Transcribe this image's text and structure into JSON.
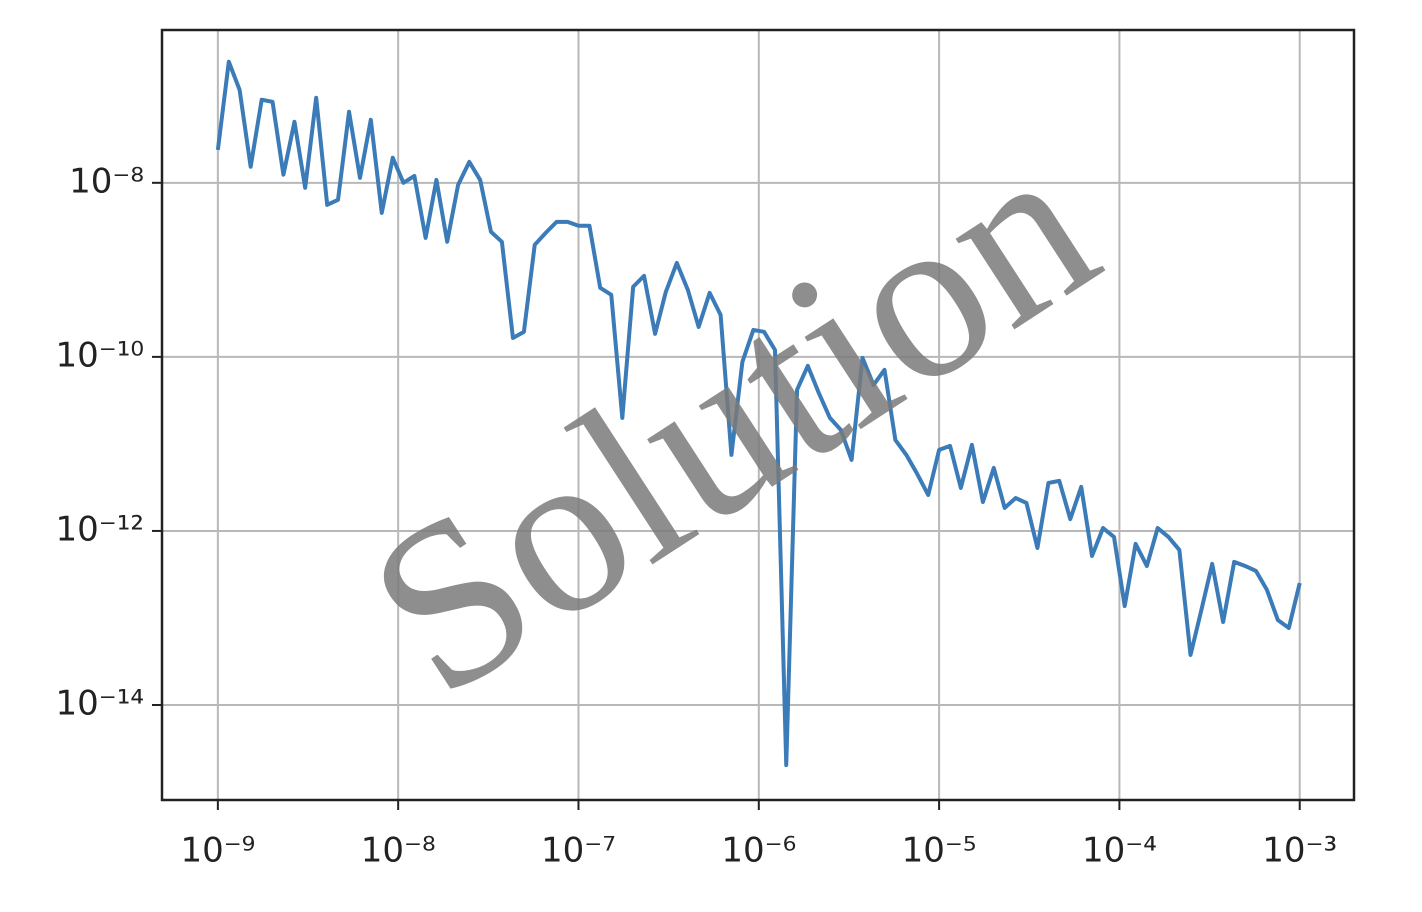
{
  "chart_data": {
    "type": "line",
    "watermark": "Solution",
    "xscale": "log",
    "yscale": "log",
    "grid": true,
    "color": "#3a7bb8",
    "xlim": [
      4.9e-10,
      0.002
    ],
    "ylim": [
      8.1e-16,
      5.7e-07
    ],
    "xticks": [
      {
        "value": 1e-09,
        "label": "10⁻⁹"
      },
      {
        "value": 1e-08,
        "label": "10⁻⁸"
      },
      {
        "value": 1e-07,
        "label": "10⁻⁷"
      },
      {
        "value": 1e-06,
        "label": "10⁻⁶"
      },
      {
        "value": 1e-05,
        "label": "10⁻⁵"
      },
      {
        "value": 0.0001,
        "label": "10⁻⁴"
      },
      {
        "value": 0.001,
        "label": "10⁻³"
      }
    ],
    "yticks": [
      {
        "value": 1e-08,
        "label": "10⁻⁸"
      },
      {
        "value": 1e-10,
        "label": "10⁻¹⁰"
      },
      {
        "value": 1e-12,
        "label": "10⁻¹²"
      },
      {
        "value": 1e-14,
        "label": "10⁻¹⁴"
      }
    ],
    "x": [
      1e-09,
      1.15e-09,
      1.32e-09,
      1.52e-09,
      1.75e-09,
      2.01e-09,
      2.31e-09,
      2.66e-09,
      3.05e-09,
      3.51e-09,
      4.04e-09,
      4.64e-09,
      5.34e-09,
      6.14e-09,
      7.05e-09,
      8.11e-09,
      9.33e-09,
      1.07e-08,
      1.23e-08,
      1.42e-08,
      1.63e-08,
      1.87e-08,
      2.15e-08,
      2.48e-08,
      2.85e-08,
      3.27e-08,
      3.76e-08,
      4.33e-08,
      4.98e-08,
      5.72e-08,
      6.58e-08,
      7.56e-08,
      8.7e-08,
      1e-07,
      1.15e-07,
      1.32e-07,
      1.52e-07,
      1.75e-07,
      2.01e-07,
      2.31e-07,
      2.66e-07,
      3.05e-07,
      3.51e-07,
      4.04e-07,
      4.64e-07,
      5.34e-07,
      6.14e-07,
      7.05e-07,
      8.11e-07,
      9.33e-07,
      1.07e-06,
      1.23e-06,
      1.42e-06,
      1.63e-06,
      1.87e-06,
      2.15e-06,
      2.48e-06,
      2.85e-06,
      3.27e-06,
      3.76e-06,
      4.33e-06,
      4.98e-06,
      5.72e-06,
      6.58e-06,
      7.56e-06,
      8.7e-06,
      1e-05,
      1.15e-05,
      1.32e-05,
      1.52e-05,
      1.75e-05,
      2.01e-05,
      2.31e-05,
      2.66e-05,
      3.05e-05,
      3.51e-05,
      4.04e-05,
      4.64e-05,
      5.34e-05,
      6.14e-05,
      7.05e-05,
      8.11e-05,
      9.33e-05,
      0.000107,
      0.000123,
      0.000142,
      0.000163,
      0.000187,
      0.000215,
      0.000248,
      0.000285,
      0.000327,
      0.000376,
      0.000433,
      0.000498,
      0.000572,
      0.000658,
      0.000756,
      0.00087,
      0.001
    ],
    "values": [
      2.39e-08,
      2.46e-07,
      1.17e-07,
      1.53e-08,
      9e-08,
      8.53e-08,
      1.24e-08,
      5.02e-08,
      8.77e-09,
      9.48e-08,
      5.58e-09,
      6.38e-09,
      6.55e-08,
      1.14e-08,
      5.3e-08,
      4.52e-09,
      1.94e-08,
      1e-08,
      1.2e-08,
      2.33e-09,
      1.08e-08,
      2.1e-09,
      9.48e-09,
      1.74e-08,
      1.08e-08,
      2.74e-09,
      2.1e-09,
      1.65e-10,
      1.94e-10,
      1.94e-09,
      2.66e-09,
      3.56e-09,
      3.56e-09,
      3.21e-09,
      3.21e-09,
      6.21e-10,
      5.16e-10,
      1.99e-11,
      6.38e-10,
      8.53e-10,
      1.84e-10,
      5.58e-10,
      1.2e-09,
      5.89e-10,
      2.21e-10,
      5.44e-10,
      3.04e-10,
      7.48e-12,
      8.77e-11,
      2.04e-10,
      1.94e-10,
      1.2e-10,
      2.04e-15,
      4.18e-11,
      7.89e-11,
      3.86e-11,
      1.99e-11,
      1.45e-11,
      6.55e-12,
      9.75e-11,
      4.76e-11,
      7.1e-11,
      1.11e-11,
      7.48e-12,
      4.52e-12,
      2.59e-12,
      8.53e-12,
      9.48e-12,
      3.12e-12,
      9.75e-12,
      2.15e-12,
      5.3e-12,
      1.84e-12,
      2.39e-12,
      2.1e-12,
      6.38e-13,
      3.56e-12,
      3.76e-12,
      1.37e-12,
      3.21e-12,
      5.16e-13,
      1.08e-12,
      8.53e-13,
      1.37e-13,
      7.1e-13,
      3.96e-13,
      1.08e-12,
      8.53e-13,
      6.05e-13,
      3.76e-14,
      1.24e-13,
      4.18e-13,
      8.99e-14,
      4.41e-13,
      3.96e-13,
      3.47e-13,
      2.1e-13,
      9.48e-14,
      7.67e-14,
      2.52e-13
    ]
  }
}
